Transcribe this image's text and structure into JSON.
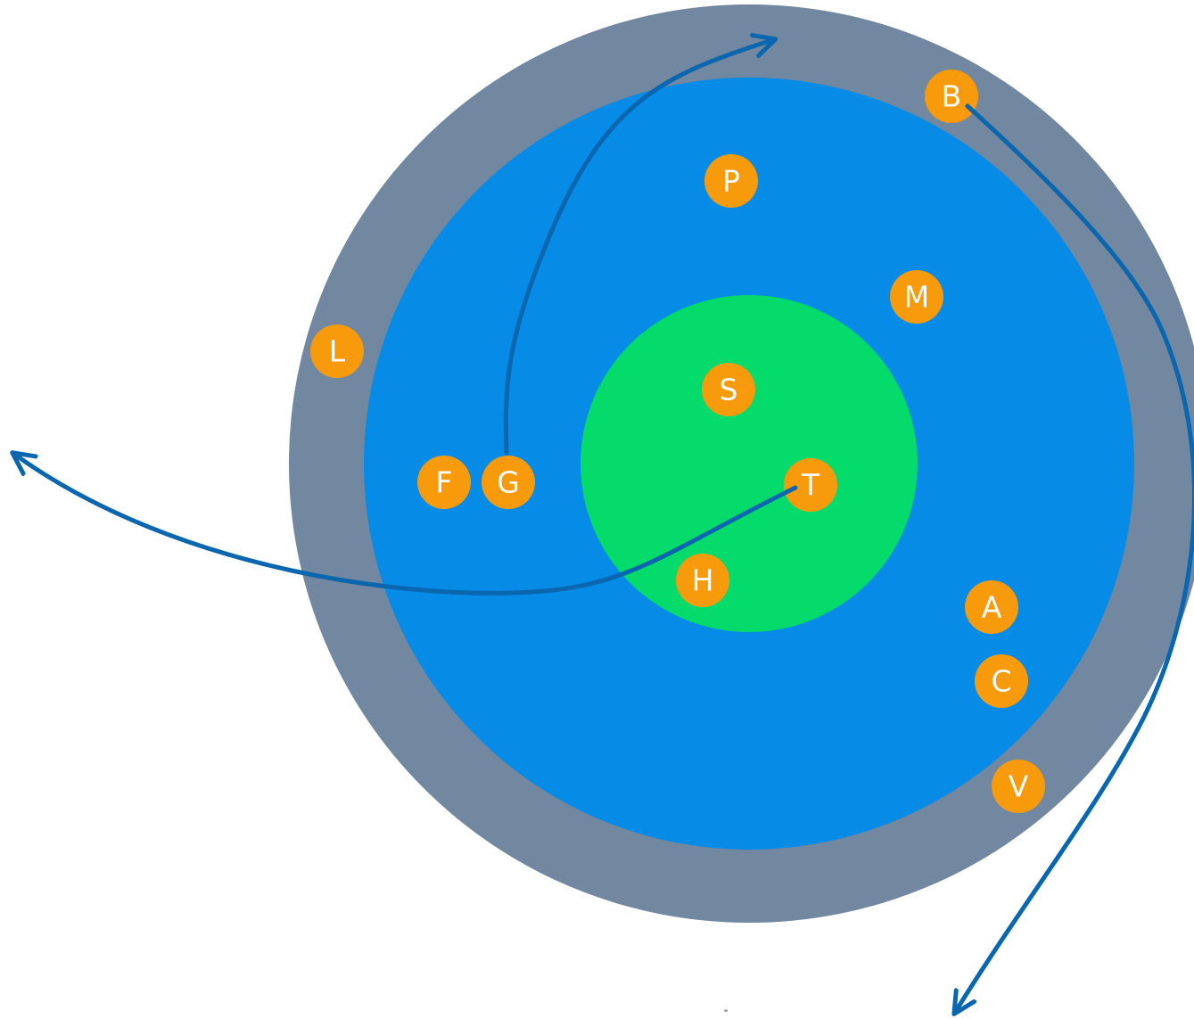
{
  "diagram": {
    "zones": [
      {
        "name": "outer-ring",
        "color": "#7288a0"
      },
      {
        "name": "middle-zone",
        "color": "#068be6"
      },
      {
        "name": "core-zone",
        "color": "#04db6a"
      }
    ],
    "node_color": "#f79a0b",
    "node_text_color": "#ffffff",
    "arrow_color": "#0a66ae",
    "nodes": [
      {
        "id": "B",
        "label": "B"
      },
      {
        "id": "P",
        "label": "P"
      },
      {
        "id": "M",
        "label": "M"
      },
      {
        "id": "L",
        "label": "L"
      },
      {
        "id": "S",
        "label": "S"
      },
      {
        "id": "F",
        "label": "F"
      },
      {
        "id": "G",
        "label": "G"
      },
      {
        "id": "T",
        "label": "T"
      },
      {
        "id": "H",
        "label": "H"
      },
      {
        "id": "A",
        "label": "A"
      },
      {
        "id": "C",
        "label": "C"
      },
      {
        "id": "V",
        "label": "V"
      }
    ],
    "arrows": [
      {
        "from": "G",
        "direction": "up-out"
      },
      {
        "from": "B",
        "direction": "down-out"
      },
      {
        "from": "T",
        "direction": "left-out"
      }
    ],
    "footnote": "”"
  }
}
